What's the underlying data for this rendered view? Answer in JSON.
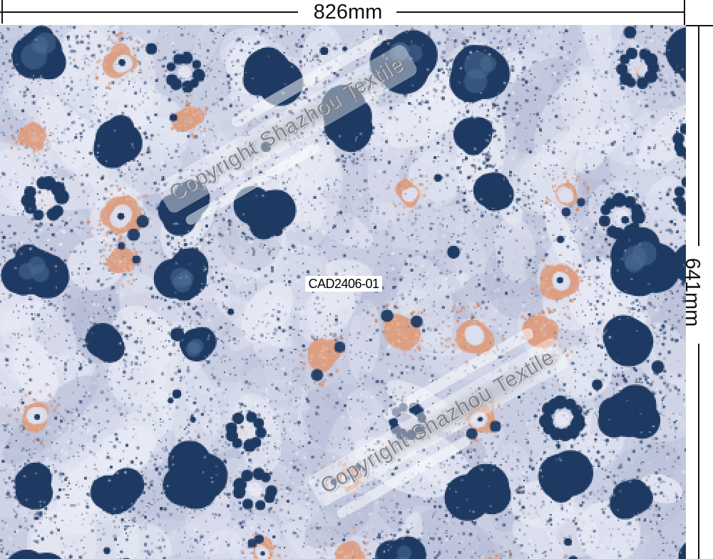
{
  "dimension_annotations": {
    "width_label": "826mm",
    "height_label": "641mm"
  },
  "design_label": {
    "code": "CAD2406-01"
  },
  "watermark": {
    "text": "Copyright Shazhou Textile"
  },
  "pattern": {
    "seed": 1337,
    "palette": {
      "background": "#c8cde2",
      "pale_patch": "#e9ebf5",
      "light_patch": "#dcdfee",
      "shadow_patch": "#b4bad4",
      "navy": "#1e3a62",
      "navy_speckle": "#2c4670",
      "steel_blue": "#4a6c94",
      "peach": "#db9e82",
      "peach_light": "#e9bca6",
      "peach_dark": "#cf8a6c"
    }
  }
}
